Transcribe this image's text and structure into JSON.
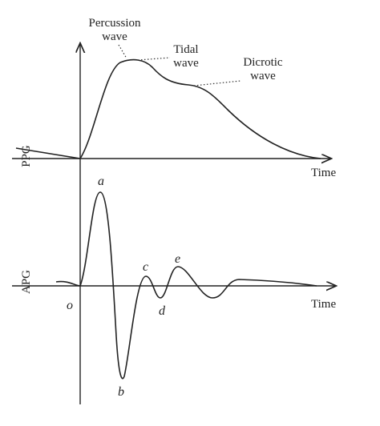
{
  "ppg": {
    "axis_label": "PPG",
    "x_label": "Time",
    "annotations": [
      {
        "lines": [
          "Percussion",
          "wave"
        ]
      },
      {
        "lines": [
          "Tidal",
          "wave"
        ]
      },
      {
        "lines": [
          "Dicrotic",
          "wave"
        ]
      }
    ]
  },
  "apg": {
    "axis_label": "APG",
    "x_label": "Time",
    "origin": "o",
    "points": [
      "a",
      "b",
      "c",
      "d",
      "e"
    ]
  }
}
